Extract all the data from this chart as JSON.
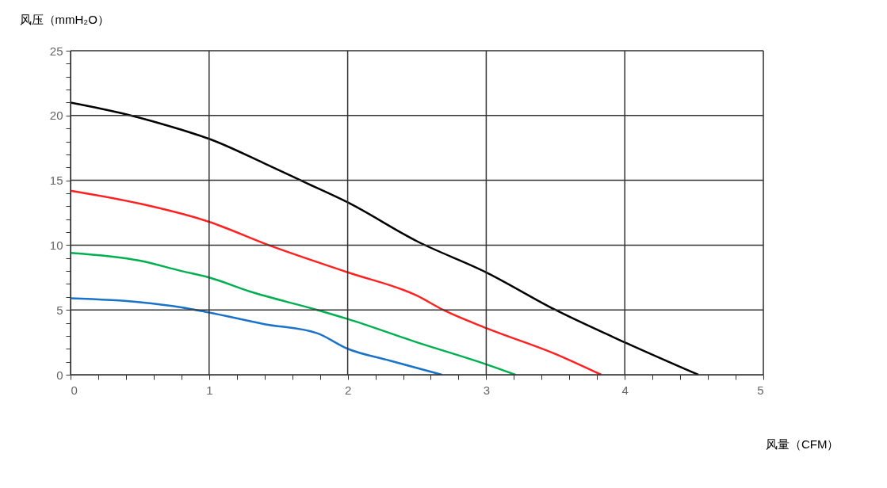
{
  "chart_data": {
    "type": "line",
    "xlabel": "风量（CFM）",
    "ylabel": "风压（mmH₂O）",
    "xlim": [
      0,
      5
    ],
    "ylim": [
      0,
      25
    ],
    "xticks": [
      0,
      {
        "value": 0.2,
        "label": null
      },
      {
        "value": 0.4,
        "label": null
      },
      {
        "value": 0.6,
        "label": null
      },
      {
        "value": 0.8,
        "label": null
      },
      1,
      {
        "value": 1.2,
        "label": null
      },
      {
        "value": 1.4,
        "label": null
      },
      {
        "value": 1.6,
        "label": null
      },
      {
        "value": 1.8,
        "label": null
      },
      2,
      {
        "value": 2.2,
        "label": null
      },
      {
        "value": 2.4,
        "label": null
      },
      {
        "value": 2.6,
        "label": null
      },
      {
        "value": 2.8,
        "label": null
      },
      3,
      {
        "value": 3.2,
        "label": null
      },
      {
        "value": 3.4,
        "label": null
      },
      {
        "value": 3.6,
        "label": null
      },
      {
        "value": 3.8,
        "label": null
      },
      4,
      {
        "value": 4.2,
        "label": null
      },
      {
        "value": 4.4,
        "label": null
      },
      {
        "value": 4.6,
        "label": null
      },
      {
        "value": 4.8,
        "label": null
      },
      5
    ],
    "yticks": [
      0,
      {
        "value": 1,
        "label": null
      },
      {
        "value": 2,
        "label": null
      },
      {
        "value": 3,
        "label": null
      },
      {
        "value": 4,
        "label": null
      },
      5,
      {
        "value": 6,
        "label": null
      },
      {
        "value": 7,
        "label": null
      },
      {
        "value": 8,
        "label": null
      },
      {
        "value": 9,
        "label": null
      },
      10,
      {
        "value": 11,
        "label": null
      },
      {
        "value": 12,
        "label": null
      },
      {
        "value": 13,
        "label": null
      },
      {
        "value": 14,
        "label": null
      },
      15,
      {
        "value": 16,
        "label": null
      },
      {
        "value": 17,
        "label": null
      },
      {
        "value": 18,
        "label": null
      },
      {
        "value": 19,
        "label": null
      },
      20,
      {
        "value": 21,
        "label": null
      },
      {
        "value": 22,
        "label": null
      },
      {
        "value": 23,
        "label": null
      },
      {
        "value": 24,
        "label": null
      },
      25
    ],
    "grid": true,
    "legend": false,
    "marker": "none",
    "line_style": "solid",
    "series": [
      {
        "color": "#000000",
        "x": [
          0,
          0.4,
          0.8,
          1,
          1.4,
          1.7,
          2,
          2.5,
          3,
          3.5,
          4,
          4.53
        ],
        "values": [
          21.0,
          20.1,
          18.9,
          18.2,
          16.3,
          14.8,
          13.3,
          10.3,
          7.9,
          5.0,
          2.5,
          0
        ]
      },
      {
        "color": "#ff2020",
        "x": [
          0,
          0.5,
          1,
          1.43,
          2,
          2.5,
          2.69,
          3,
          3.5,
          3.83
        ],
        "values": [
          14.2,
          13.2,
          11.8,
          10,
          7.9,
          6.1,
          5,
          3.6,
          1.6,
          0
        ]
      },
      {
        "color": "#00b050",
        "x": [
          0,
          0.5,
          0.8,
          1,
          1.3,
          1.78,
          2,
          2.5,
          3,
          3.21
        ],
        "values": [
          9.4,
          8.8,
          8.0,
          7.5,
          6.4,
          5,
          4.3,
          2.5,
          0.8,
          0
        ]
      },
      {
        "color": "#1a73c8",
        "x": [
          0,
          0.5,
          0.8,
          1,
          1.4,
          1.78,
          2,
          2.3,
          2.68
        ],
        "values": [
          5.9,
          5.6,
          5.2,
          4.8,
          3.9,
          3.2,
          2.0,
          1.1,
          0
        ]
      }
    ]
  }
}
